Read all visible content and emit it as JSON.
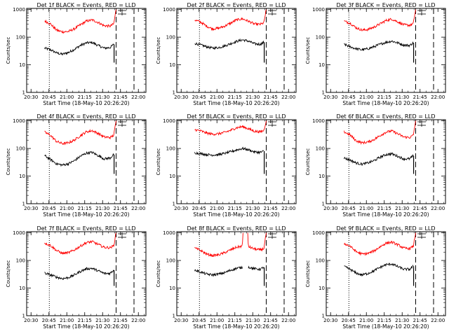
{
  "page": {
    "shared_xlabel": "Start Time (18-May-10 20:26:20)",
    "shared_ylabel": "Counts/sec",
    "x_tick_labels": [
      "20:30",
      "20:45",
      "21:00",
      "21:15",
      "21:30",
      "21:45",
      "22:00"
    ],
    "y_tick_labels": [
      "1",
      "10",
      "100",
      "1000"
    ],
    "colors": {
      "events": "#000000",
      "lld": "#ff0000",
      "axis": "#000000"
    }
  },
  "chart_data": [
    {
      "type": "line",
      "title": "Det 1f BLACK = Events, RED = LLD",
      "xlabel": "Start Time (18-May-10 20:26:20)",
      "ylabel": "Counts/sec",
      "x_unit": "minutes since 20:26:20",
      "xlim": [
        0,
        100
      ],
      "ylim": [
        1,
        1100
      ],
      "y_scale": "log",
      "x_ticks": [
        "20:30",
        "20:45",
        "21:00",
        "21:15",
        "21:30",
        "21:45",
        "22:00"
      ],
      "y_ticks": [
        1,
        10,
        100,
        1000
      ],
      "vlines": [
        {
          "x": 19,
          "style": "dotted"
        },
        {
          "x": 75,
          "style": "dashed"
        },
        {
          "x": 90,
          "style": "dashed"
        }
      ],
      "series": [
        {
          "name": "Events",
          "color": "#000000",
          "x": [
            15,
            20,
            25,
            30,
            35,
            40,
            45,
            50,
            55,
            60,
            65,
            70,
            73
          ],
          "y": [
            40,
            35,
            27,
            24,
            28,
            36,
            50,
            62,
            64,
            50,
            40,
            42,
            55
          ]
        },
        {
          "name": "LLD",
          "color": "#ff0000",
          "x": [
            15,
            20,
            25,
            30,
            35,
            40,
            45,
            50,
            55,
            60,
            65,
            70,
            73,
            75
          ],
          "y": [
            390,
            300,
            180,
            155,
            160,
            200,
            280,
            380,
            420,
            340,
            260,
            250,
            300,
            1000
          ]
        }
      ]
    },
    {
      "type": "line",
      "title": "Det 2f BLACK = Events, RED = LLD",
      "xlabel": "Start Time (18-May-10 20:26:20)",
      "ylabel": "Counts/sec",
      "x_unit": "minutes since 20:26:20",
      "xlim": [
        0,
        100
      ],
      "ylim": [
        1,
        1100
      ],
      "y_scale": "log",
      "x_ticks": [
        "20:30",
        "20:45",
        "21:00",
        "21:15",
        "21:30",
        "21:45",
        "22:00"
      ],
      "y_ticks": [
        1,
        10,
        100,
        1000
      ],
      "vlines": [
        {
          "x": 19,
          "style": "dotted"
        },
        {
          "x": 75,
          "style": "dashed"
        },
        {
          "x": 90,
          "style": "dashed"
        }
      ],
      "series": [
        {
          "name": "Events",
          "color": "#000000",
          "x": [
            15,
            20,
            25,
            30,
            35,
            40,
            45,
            50,
            55,
            60,
            65,
            70,
            73
          ],
          "y": [
            60,
            52,
            45,
            40,
            42,
            48,
            58,
            70,
            80,
            72,
            58,
            55,
            65
          ]
        },
        {
          "name": "LLD",
          "color": "#ff0000",
          "x": [
            15,
            20,
            25,
            30,
            35,
            40,
            45,
            50,
            55,
            60,
            65,
            70,
            73,
            75
          ],
          "y": [
            420,
            350,
            250,
            200,
            210,
            250,
            320,
            420,
            460,
            380,
            300,
            290,
            330,
            1000
          ]
        }
      ]
    },
    {
      "type": "line",
      "title": "Det 3f BLACK = Events, RED = LLD",
      "xlabel": "Start Time (18-May-10 20:26:20)",
      "ylabel": "Counts/sec",
      "x_unit": "minutes since 20:26:20",
      "xlim": [
        0,
        100
      ],
      "ylim": [
        1,
        1100
      ],
      "y_scale": "log",
      "x_ticks": [
        "20:30",
        "20:45",
        "21:00",
        "21:15",
        "21:30",
        "21:45",
        "22:00"
      ],
      "y_ticks": [
        1,
        10,
        100,
        1000
      ],
      "vlines": [
        {
          "x": 19,
          "style": "dotted"
        },
        {
          "x": 75,
          "style": "dashed"
        },
        {
          "x": 90,
          "style": "dashed"
        }
      ],
      "series": [
        {
          "name": "Events",
          "color": "#000000",
          "x": [
            15,
            20,
            25,
            30,
            35,
            40,
            45,
            50,
            55,
            60,
            65,
            70,
            73
          ],
          "y": [
            55,
            45,
            38,
            35,
            38,
            45,
            55,
            65,
            72,
            62,
            52,
            50,
            62
          ]
        },
        {
          "name": "LLD",
          "color": "#ff0000",
          "x": [
            15,
            20,
            25,
            30,
            35,
            40,
            45,
            50,
            55,
            60,
            65,
            70,
            73,
            75
          ],
          "y": [
            380,
            320,
            220,
            180,
            190,
            230,
            300,
            400,
            450,
            360,
            280,
            270,
            310,
            1000
          ]
        }
      ]
    },
    {
      "type": "line",
      "title": "Det 4f BLACK = Events, RED = LLD",
      "xlabel": "Start Time (18-May-10 20:26:20)",
      "ylabel": "Counts/sec",
      "x_unit": "minutes since 20:26:20",
      "xlim": [
        0,
        100
      ],
      "ylim": [
        1,
        1100
      ],
      "y_scale": "log",
      "x_ticks": [
        "20:30",
        "20:45",
        "21:00",
        "21:15",
        "21:30",
        "21:45",
        "22:00"
      ],
      "y_ticks": [
        1,
        10,
        100,
        1000
      ],
      "vlines": [
        {
          "x": 19,
          "style": "dotted"
        },
        {
          "x": 75,
          "style": "dashed"
        },
        {
          "x": 90,
          "style": "dashed"
        }
      ],
      "series": [
        {
          "name": "Events",
          "color": "#000000",
          "x": [
            15,
            20,
            25,
            30,
            35,
            40,
            45,
            50,
            55,
            60,
            65,
            70,
            73
          ],
          "y": [
            55,
            40,
            28,
            25,
            28,
            36,
            52,
            68,
            72,
            55,
            42,
            45,
            60
          ]
        },
        {
          "name": "LLD",
          "color": "#ff0000",
          "x": [
            15,
            20,
            25,
            30,
            35,
            40,
            45,
            50,
            55,
            60,
            65,
            70,
            73,
            75
          ],
          "y": [
            390,
            300,
            180,
            150,
            160,
            200,
            290,
            400,
            440,
            350,
            260,
            250,
            300,
            1000
          ]
        }
      ]
    },
    {
      "type": "line",
      "title": "Det 5f BLACK = Events, RED = LLD",
      "xlabel": "Start Time (18-May-10 20:26:20)",
      "ylabel": "Counts/sec",
      "x_unit": "minutes since 20:26:20",
      "xlim": [
        0,
        100
      ],
      "ylim": [
        1,
        1100
      ],
      "y_scale": "log",
      "x_ticks": [
        "20:30",
        "20:45",
        "21:00",
        "21:15",
        "21:30",
        "21:45",
        "22:00"
      ],
      "y_ticks": [
        1,
        10,
        100,
        1000
      ],
      "vlines": [
        {
          "x": 19,
          "style": "dotted"
        },
        {
          "x": 75,
          "style": "dashed"
        },
        {
          "x": 90,
          "style": "dashed"
        }
      ],
      "series": [
        {
          "name": "Events",
          "color": "#000000",
          "x": [
            15,
            20,
            25,
            30,
            35,
            40,
            45,
            50,
            55,
            60,
            65,
            70,
            73
          ],
          "y": [
            70,
            65,
            60,
            58,
            60,
            66,
            75,
            88,
            100,
            90,
            75,
            72,
            80
          ]
        },
        {
          "name": "LLD",
          "color": "#ff0000",
          "x": [
            15,
            20,
            25,
            30,
            35,
            40,
            45,
            50,
            55,
            60,
            65,
            70,
            73,
            75
          ],
          "y": [
            480,
            430,
            360,
            330,
            340,
            380,
            450,
            560,
            620,
            520,
            420,
            400,
            450,
            1000
          ]
        }
      ]
    },
    {
      "type": "line",
      "title": "Det 6f BLACK = Events, RED = LLD",
      "xlabel": "Start Time (18-May-10 20:26:20)",
      "ylabel": "Counts/sec",
      "x_unit": "minutes since 20:26:20",
      "xlim": [
        0,
        100
      ],
      "ylim": [
        1,
        1100
      ],
      "y_scale": "log",
      "x_ticks": [
        "20:30",
        "20:45",
        "21:00",
        "21:15",
        "21:30",
        "21:45",
        "22:00"
      ],
      "y_ticks": [
        1,
        10,
        100,
        1000
      ],
      "vlines": [
        {
          "x": 19,
          "style": "dotted"
        },
        {
          "x": 75,
          "style": "dashed"
        },
        {
          "x": 90,
          "style": "dashed"
        }
      ],
      "series": [
        {
          "name": "Events",
          "color": "#000000",
          "x": [
            15,
            20,
            25,
            30,
            35,
            40,
            45,
            50,
            55,
            60,
            65,
            70,
            73
          ],
          "y": [
            45,
            38,
            30,
            27,
            30,
            36,
            48,
            60,
            64,
            52,
            42,
            42,
            55
          ]
        },
        {
          "name": "LLD",
          "color": "#ff0000",
          "x": [
            15,
            20,
            25,
            30,
            35,
            40,
            45,
            50,
            55,
            60,
            65,
            70,
            73,
            75
          ],
          "y": [
            400,
            310,
            190,
            160,
            170,
            210,
            290,
            390,
            430,
            340,
            260,
            250,
            300,
            1000
          ]
        }
      ]
    },
    {
      "type": "line",
      "title": "Det 7f BLACK = Events, RED = LLD",
      "xlabel": "Start Time (18-May-10 20:26:20)",
      "ylabel": "Counts/sec",
      "x_unit": "minutes since 20:26:20",
      "xlim": [
        0,
        100
      ],
      "ylim": [
        1,
        1100
      ],
      "y_scale": "log",
      "x_ticks": [
        "20:30",
        "20:45",
        "21:00",
        "21:15",
        "21:30",
        "21:45",
        "22:00"
      ],
      "y_ticks": [
        1,
        10,
        100,
        1000
      ],
      "vlines": [
        {
          "x": 19,
          "style": "dotted"
        },
        {
          "x": 75,
          "style": "dashed"
        },
        {
          "x": 90,
          "style": "dashed"
        }
      ],
      "series": [
        {
          "name": "Events",
          "color": "#000000",
          "x": [
            15,
            20,
            25,
            30,
            35,
            40,
            45,
            50,
            55,
            60,
            65,
            70,
            73
          ],
          "y": [
            35,
            30,
            25,
            22,
            24,
            30,
            40,
            50,
            52,
            42,
            34,
            34,
            45
          ]
        },
        {
          "name": "LLD",
          "color": "#ff0000",
          "x": [
            15,
            20,
            25,
            30,
            35,
            40,
            45,
            50,
            55,
            60,
            65,
            70,
            73,
            75
          ],
          "y": [
            430,
            350,
            230,
            180,
            190,
            240,
            330,
            440,
            480,
            380,
            300,
            290,
            340,
            1000
          ]
        }
      ]
    },
    {
      "type": "line",
      "title": "Det 8f BLACK = Events, RED = LLD",
      "xlabel": "Start Time (18-May-10 20:26:20)",
      "ylabel": "Counts/sec",
      "x_unit": "minutes since 20:26:20",
      "xlim": [
        0,
        100
      ],
      "ylim": [
        1,
        1100
      ],
      "y_scale": "log",
      "x_ticks": [
        "20:30",
        "20:45",
        "21:00",
        "21:15",
        "21:30",
        "21:45",
        "22:00"
      ],
      "y_ticks": [
        1,
        10,
        100,
        1000
      ],
      "vlines": [
        {
          "x": 19,
          "style": "dotted"
        },
        {
          "x": 75,
          "style": "dashed"
        },
        {
          "x": 90,
          "style": "dashed"
        }
      ],
      "series": [
        {
          "name": "Events",
          "color": "#000000",
          "x": [
            15,
            20,
            25,
            30,
            35,
            40,
            45,
            50,
            55
          ],
          "y": [
            45,
            38,
            32,
            30,
            32,
            36,
            44,
            52,
            56
          ]
        },
        {
          "name": "Events",
          "color": "#000000",
          "x": [
            60,
            65,
            70,
            73
          ],
          "y": [
            58,
            50,
            48,
            58
          ]
        },
        {
          "name": "LLD",
          "color": "#ff0000",
          "x": [
            15,
            20,
            25,
            30,
            35,
            40,
            45,
            50,
            55,
            55.5
          ],
          "y": [
            280,
            230,
            170,
            150,
            160,
            190,
            240,
            300,
            330,
            1000
          ]
        },
        {
          "name": "LLD",
          "color": "#ff0000",
          "x": [
            59.5,
            60,
            65,
            70,
            73,
            75
          ],
          "y": [
            1000,
            320,
            260,
            240,
            270,
            1000
          ]
        }
      ]
    },
    {
      "type": "line",
      "title": "Det 9f BLACK = Events, RED = LLD",
      "xlabel": "Start Time (18-May-10 20:26:20)",
      "ylabel": "Counts/sec",
      "x_unit": "minutes since 20:26:20",
      "xlim": [
        0,
        100
      ],
      "ylim": [
        1,
        1100
      ],
      "y_scale": "log",
      "x_ticks": [
        "20:30",
        "20:45",
        "21:00",
        "21:15",
        "21:30",
        "21:45",
        "22:00"
      ],
      "y_ticks": [
        1,
        10,
        100,
        1000
      ],
      "vlines": [
        {
          "x": 19,
          "style": "dotted"
        },
        {
          "x": 75,
          "style": "dashed"
        },
        {
          "x": 90,
          "style": "dashed"
        }
      ],
      "series": [
        {
          "name": "Events",
          "color": "#000000",
          "x": [
            15,
            20,
            25,
            30,
            35,
            40,
            45,
            50,
            55,
            60,
            65,
            70,
            73
          ],
          "y": [
            60,
            48,
            35,
            30,
            34,
            42,
            56,
            70,
            75,
            60,
            48,
            48,
            62
          ]
        },
        {
          "name": "LLD",
          "color": "#ff0000",
          "x": [
            15,
            20,
            25,
            30,
            35,
            40,
            45,
            50,
            55,
            60,
            65,
            70,
            73,
            75
          ],
          "y": [
            410,
            330,
            210,
            170,
            180,
            220,
            310,
            420,
            460,
            370,
            280,
            270,
            320,
            1000
          ]
        }
      ]
    }
  ]
}
